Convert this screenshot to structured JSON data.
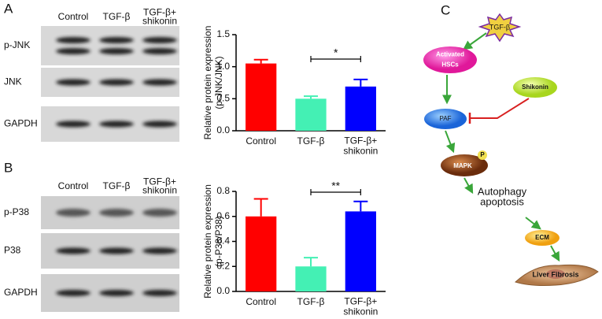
{
  "panels": [
    {
      "label": "A",
      "lanes": [
        "Control",
        "TGF-β",
        "TGF-β+\nshikonin"
      ],
      "rows": [
        "p-JNK",
        "JNK",
        "GAPDH"
      ]
    },
    {
      "label": "B",
      "lanes": [
        "Control",
        "TGF-β",
        "TGF-β+\nshikonin"
      ],
      "rows": [
        "p-P38",
        "P38",
        "GAPDH"
      ]
    }
  ],
  "chart_data": [
    {
      "type": "bar",
      "y_label": "Relative protein expression\n(p-JNK/JNK)",
      "categories": [
        "Control",
        "TGF-β",
        "TGF-β+\nshikonin"
      ],
      "values": [
        1.05,
        0.5,
        0.69
      ],
      "errors": [
        0.06,
        0.04,
        0.11
      ],
      "colors": [
        "#ff0000",
        "#44f0b4",
        "#0000ff"
      ],
      "ylim": [
        0,
        1.5
      ],
      "yticks": [
        {
          "value": 0,
          "label": "0.0"
        },
        {
          "value": 0.5,
          "label": "0.5"
        },
        {
          "value": 1,
          "label": "1.0"
        },
        {
          "value": 1.5,
          "label": "1.5"
        }
      ],
      "annotation": "*"
    },
    {
      "type": "bar",
      "y_label": "Relative protein expression\n(p-P38/P38)",
      "categories": [
        "Control",
        "TGF-β",
        "TGF-β+\nshikonin"
      ],
      "values": [
        0.6,
        0.2,
        0.64
      ],
      "errors": [
        0.14,
        0.07,
        0.08
      ],
      "colors": [
        "#ff0000",
        "#44f0b4",
        "#0000ff"
      ],
      "ylim": [
        0,
        0.8
      ],
      "yticks": [
        {
          "value": 0,
          "label": "0.0"
        },
        0.2,
        0.4,
        0.6,
        0.8
      ],
      "annotation": "**"
    }
  ],
  "diagram": {
    "label": "C",
    "nodes": [
      "TGF-β",
      "Activated\nHSCs",
      "Shikonin",
      "PAF",
      "MAPK",
      "P",
      "Autophagy\napoptosis",
      "ECM",
      "Liver Fibrosis"
    ]
  }
}
